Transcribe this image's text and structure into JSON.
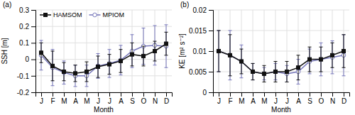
{
  "chart_data": [
    {
      "type": "line",
      "title": "(a)",
      "xlabel": "Month",
      "ylabel": "SSH [m]",
      "categories": [
        "J",
        "F",
        "M",
        "A",
        "M",
        "J",
        "J",
        "A",
        "S",
        "O",
        "N",
        "D"
      ],
      "series": [
        {
          "name": "HAMSOM",
          "color": "#111111",
          "marker": "square",
          "values": [
            0.04,
            -0.04,
            -0.075,
            -0.085,
            -0.075,
            -0.045,
            -0.03,
            -0.01,
            0.03,
            0.02,
            0.05,
            0.095
          ],
          "errors": [
            0.06,
            0.09,
            0.055,
            0.05,
            0.06,
            0.065,
            0.06,
            0.07,
            0.07,
            0.06,
            0.06,
            0.07
          ]
        },
        {
          "name": "MPIOM",
          "color": "#7777bb",
          "marker": "circle-open",
          "values": [
            0.025,
            -0.05,
            -0.08,
            -0.1,
            -0.1,
            -0.04,
            -0.025,
            -0.005,
            0.05,
            0.08,
            0.085,
            0.08
          ],
          "errors": [
            0.09,
            0.11,
            0.07,
            0.065,
            0.065,
            0.075,
            0.085,
            0.09,
            0.1,
            0.11,
            0.12,
            0.13
          ]
        }
      ],
      "ylim": [
        -0.2,
        0.3
      ],
      "yticks": [
        -0.2,
        -0.1,
        0,
        0.1,
        0.2,
        0.3
      ],
      "grid": true,
      "legend": "upper left"
    },
    {
      "type": "line",
      "title": "(b)",
      "xlabel": "Month",
      "ylabel": "KE [m² s⁻²]",
      "categories": [
        "J",
        "F",
        "M",
        "A",
        "M",
        "J",
        "J",
        "A",
        "S",
        "O",
        "N",
        "D"
      ],
      "series": [
        {
          "color": "#111111",
          "marker": "square",
          "values": [
            0.01,
            0.009,
            0.0075,
            0.005,
            0.0045,
            0.005,
            0.005,
            0.006,
            0.008,
            0.008,
            0.009,
            0.01
          ],
          "errors": [
            0.005,
            0.005,
            0.003,
            0.002,
            0.002,
            0.0025,
            0.0025,
            0.003,
            0.003,
            0.003,
            0.003,
            0.004
          ]
        },
        {
          "color": "#7777bb",
          "marker": "circle-open",
          "values": [
            0.01,
            0.009,
            0.0075,
            0.005,
            0.0045,
            0.005,
            0.0045,
            0.005,
            0.0075,
            0.008,
            0.0085,
            0.009
          ],
          "errors": [
            0.005,
            0.006,
            0.004,
            0.002,
            0.0015,
            0.002,
            0.002,
            0.003,
            0.003,
            0.004,
            0.004,
            0.005
          ]
        }
      ],
      "ylim": [
        0,
        0.02
      ],
      "yticks": [
        0,
        0.005,
        0.01,
        0.015,
        0.02
      ],
      "grid": true
    }
  ]
}
